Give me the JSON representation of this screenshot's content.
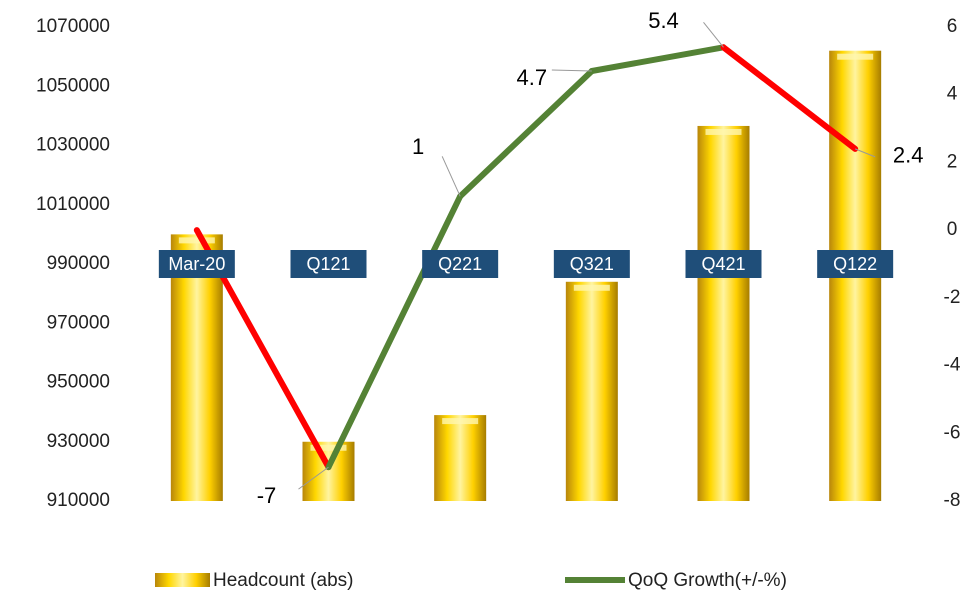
{
  "chart_data": {
    "type": "bar-line",
    "categories": [
      "Mar-20",
      "Q121",
      "Q221",
      "Q321",
      "Q421",
      "Q122"
    ],
    "series": [
      {
        "name": "Headcount (abs)",
        "type": "bar",
        "color": "#f2c200",
        "values": [
          1000000,
          930000,
          939000,
          984000,
          1036600,
          1062000
        ]
      },
      {
        "name": "QoQ Growth(+/-%)",
        "type": "line",
        "axis": "y2",
        "color": "#548235",
        "decline_color": "#ff0000",
        "values": [
          0,
          -7,
          1,
          4.7,
          5.4,
          2.4
        ],
        "value_labels": [
          null,
          "-7",
          "1",
          "4.7",
          "5.4",
          "2.4"
        ]
      }
    ],
    "ylim": [
      910000,
      1070000
    ],
    "yticks": [
      910000,
      930000,
      950000,
      970000,
      990000,
      1010000,
      1030000,
      1050000,
      1070000
    ],
    "y2lim": [
      -8,
      6
    ],
    "y2ticks": [
      -8,
      -6,
      -4,
      -2,
      0,
      2,
      4,
      6
    ],
    "legend": "bottom"
  }
}
